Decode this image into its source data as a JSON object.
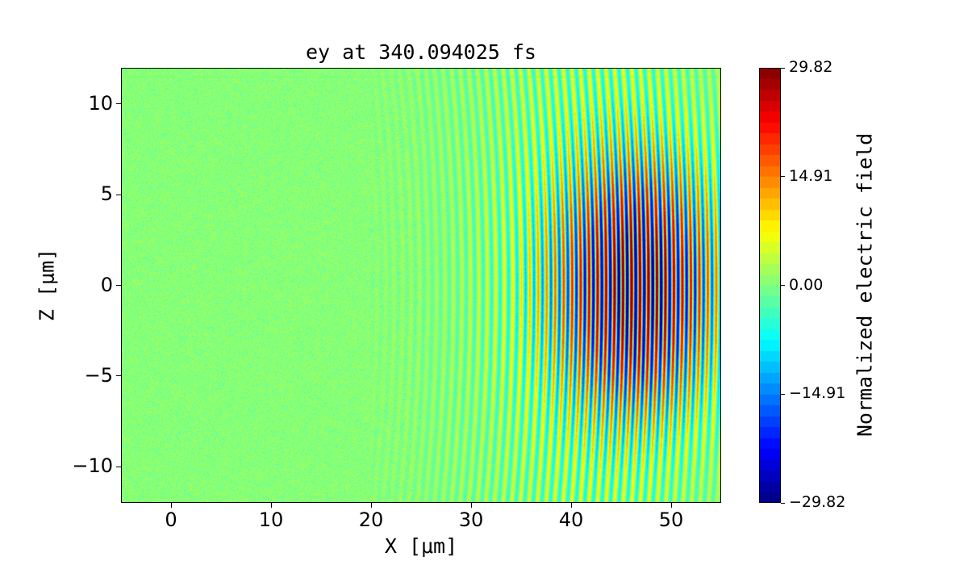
{
  "chart_data": {
    "type": "heatmap",
    "title": "ey at 340.094025 fs",
    "xlabel": "X [μm]",
    "ylabel": "Z [μm]",
    "xlim": [
      -5,
      55
    ],
    "ylim": [
      -12,
      12
    ],
    "xticks": [
      0,
      10,
      20,
      30,
      40,
      50
    ],
    "xtick_labels": [
      "0",
      "10",
      "20",
      "30",
      "40",
      "50"
    ],
    "yticks": [
      -10,
      -5,
      0,
      5,
      10
    ],
    "ytick_labels": [
      "−10",
      "−5",
      "0",
      "5",
      "10"
    ],
    "colormap": "jet",
    "color_levels": 40,
    "colorbar": {
      "label": "Normalized electric field",
      "range": [
        -29.82,
        29.82
      ],
      "ticks": [
        29.82,
        14.91,
        0.0,
        -14.91,
        -29.82
      ],
      "tick_labels": [
        "29.82",
        "14.91",
        "0.00",
        "−14.91",
        "−29.82"
      ]
    },
    "field_description": "curved laser wavefronts propagating in +X, strongest near X≈40–52 μm, |Z|<6 μm; noisy near-zero background for X<25 μm"
  }
}
